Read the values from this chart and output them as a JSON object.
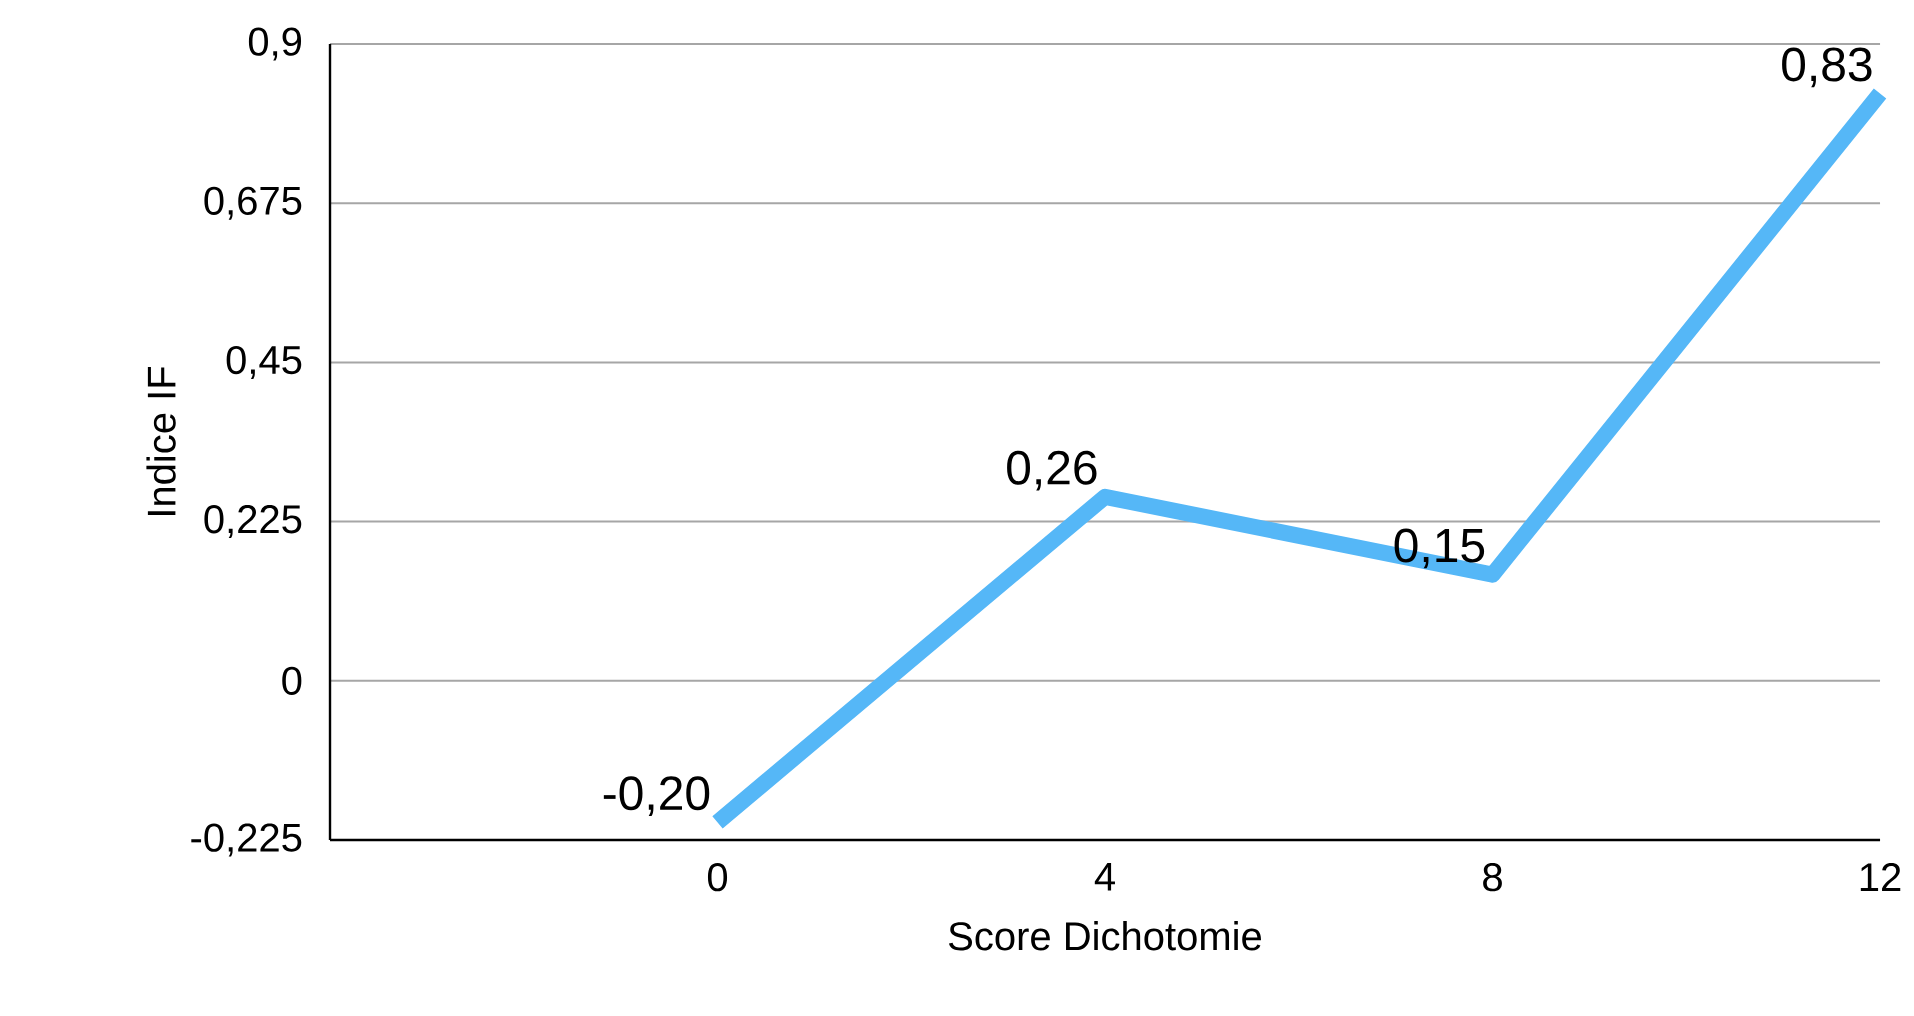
{
  "chart_data": {
    "type": "line",
    "xlabel": "Score Dichotomie",
    "ylabel": "Indice IF",
    "x": [
      0,
      4,
      8,
      12
    ],
    "series": [
      {
        "color": "#55b7f7",
        "values": [
          -0.2,
          0.26,
          0.15,
          0.83
        ],
        "value_labels": [
          "-0,20",
          "0,26",
          "0,15",
          "0,83"
        ]
      }
    ],
    "xlim": [
      -4,
      12
    ],
    "xticks": [
      0,
      4,
      8,
      12
    ],
    "ylim": [
      -0.225,
      0.9
    ],
    "yticks": [
      {
        "value": -0.225,
        "label": "-0,225"
      },
      {
        "value": 0,
        "label": "0"
      },
      {
        "value": 0.225,
        "label": "0,225"
      },
      {
        "value": 0.45,
        "label": "0,45"
      },
      {
        "value": 0.675,
        "label": "0,675"
      },
      {
        "value": 0.9,
        "label": "0,9"
      }
    ],
    "grid": "y",
    "line_style": "solid"
  }
}
